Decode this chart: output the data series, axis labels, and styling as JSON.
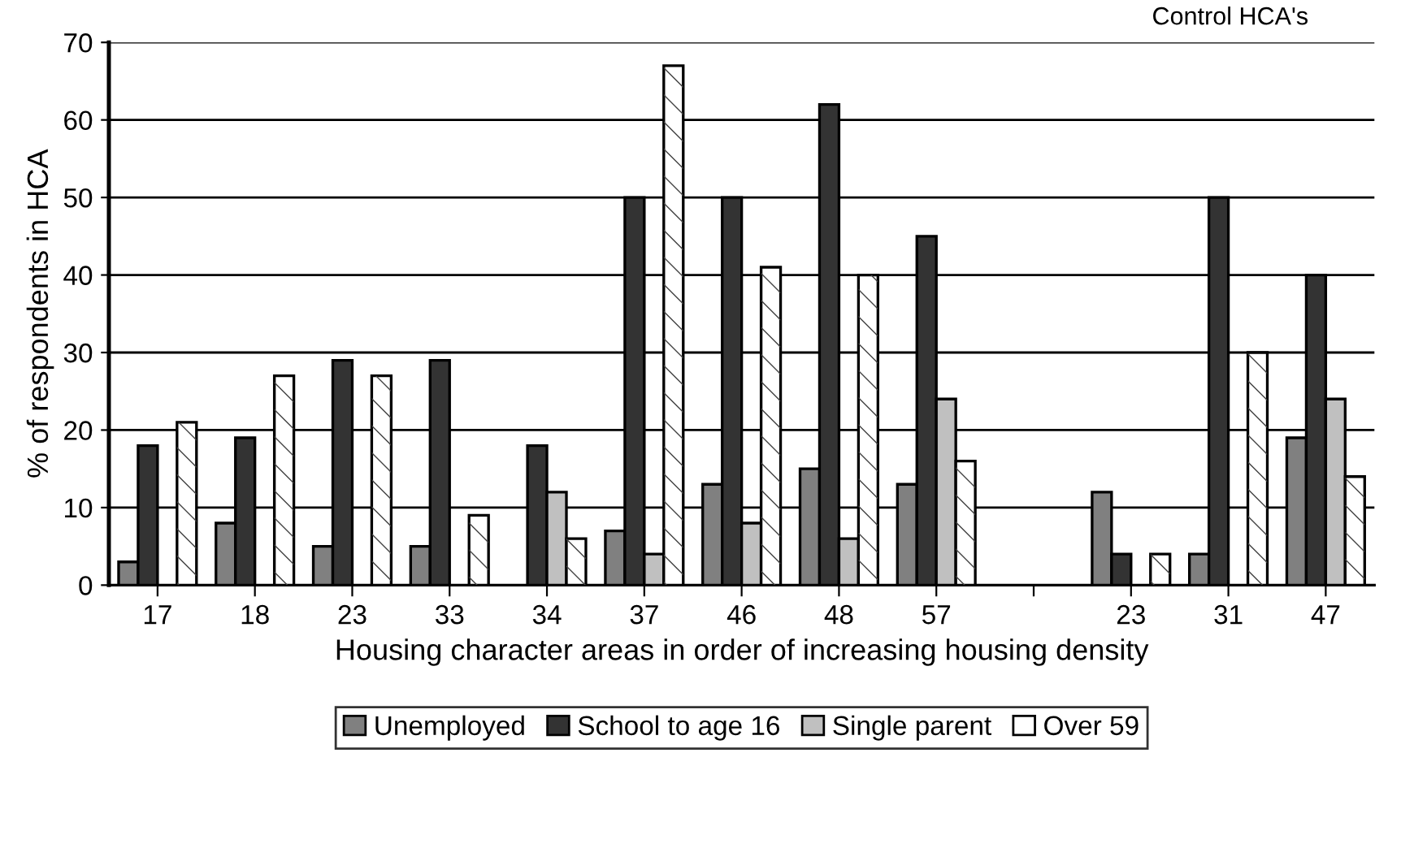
{
  "chart_data": {
    "type": "bar",
    "xlabel": "Housing character areas in order of increasing housing density",
    "ylabel": "% of respondents in HCA",
    "annotations": [
      "Control HCA's"
    ],
    "categories": [
      "17",
      "18",
      "23",
      "33",
      "34",
      "37",
      "46",
      "48",
      "57",
      null,
      "23",
      "31",
      "47"
    ],
    "series": [
      {
        "name": "Unemployed",
        "color": "#808080",
        "values": [
          3,
          8,
          5,
          5,
          null,
          7,
          13,
          15,
          13,
          null,
          12,
          4,
          19
        ]
      },
      {
        "name": "School to age 16",
        "color": "#333333",
        "values": [
          18,
          19,
          29,
          29,
          18,
          50,
          50,
          62,
          45,
          null,
          4,
          50,
          40
        ]
      },
      {
        "name": "Single parent",
        "color": "#c0c0c0",
        "values": [
          null,
          null,
          null,
          null,
          12,
          4,
          8,
          6,
          24,
          null,
          null,
          null,
          24
        ]
      },
      {
        "name": "Over 59",
        "color": "#ffffff",
        "values": [
          21,
          27,
          27,
          9,
          6,
          67,
          41,
          40,
          16,
          null,
          4,
          30,
          14
        ]
      }
    ],
    "ylim": [
      0,
      70
    ],
    "yticks": [
      0,
      10,
      20,
      30,
      40,
      50,
      60,
      70
    ],
    "grid": "y",
    "legend": "bottom"
  }
}
